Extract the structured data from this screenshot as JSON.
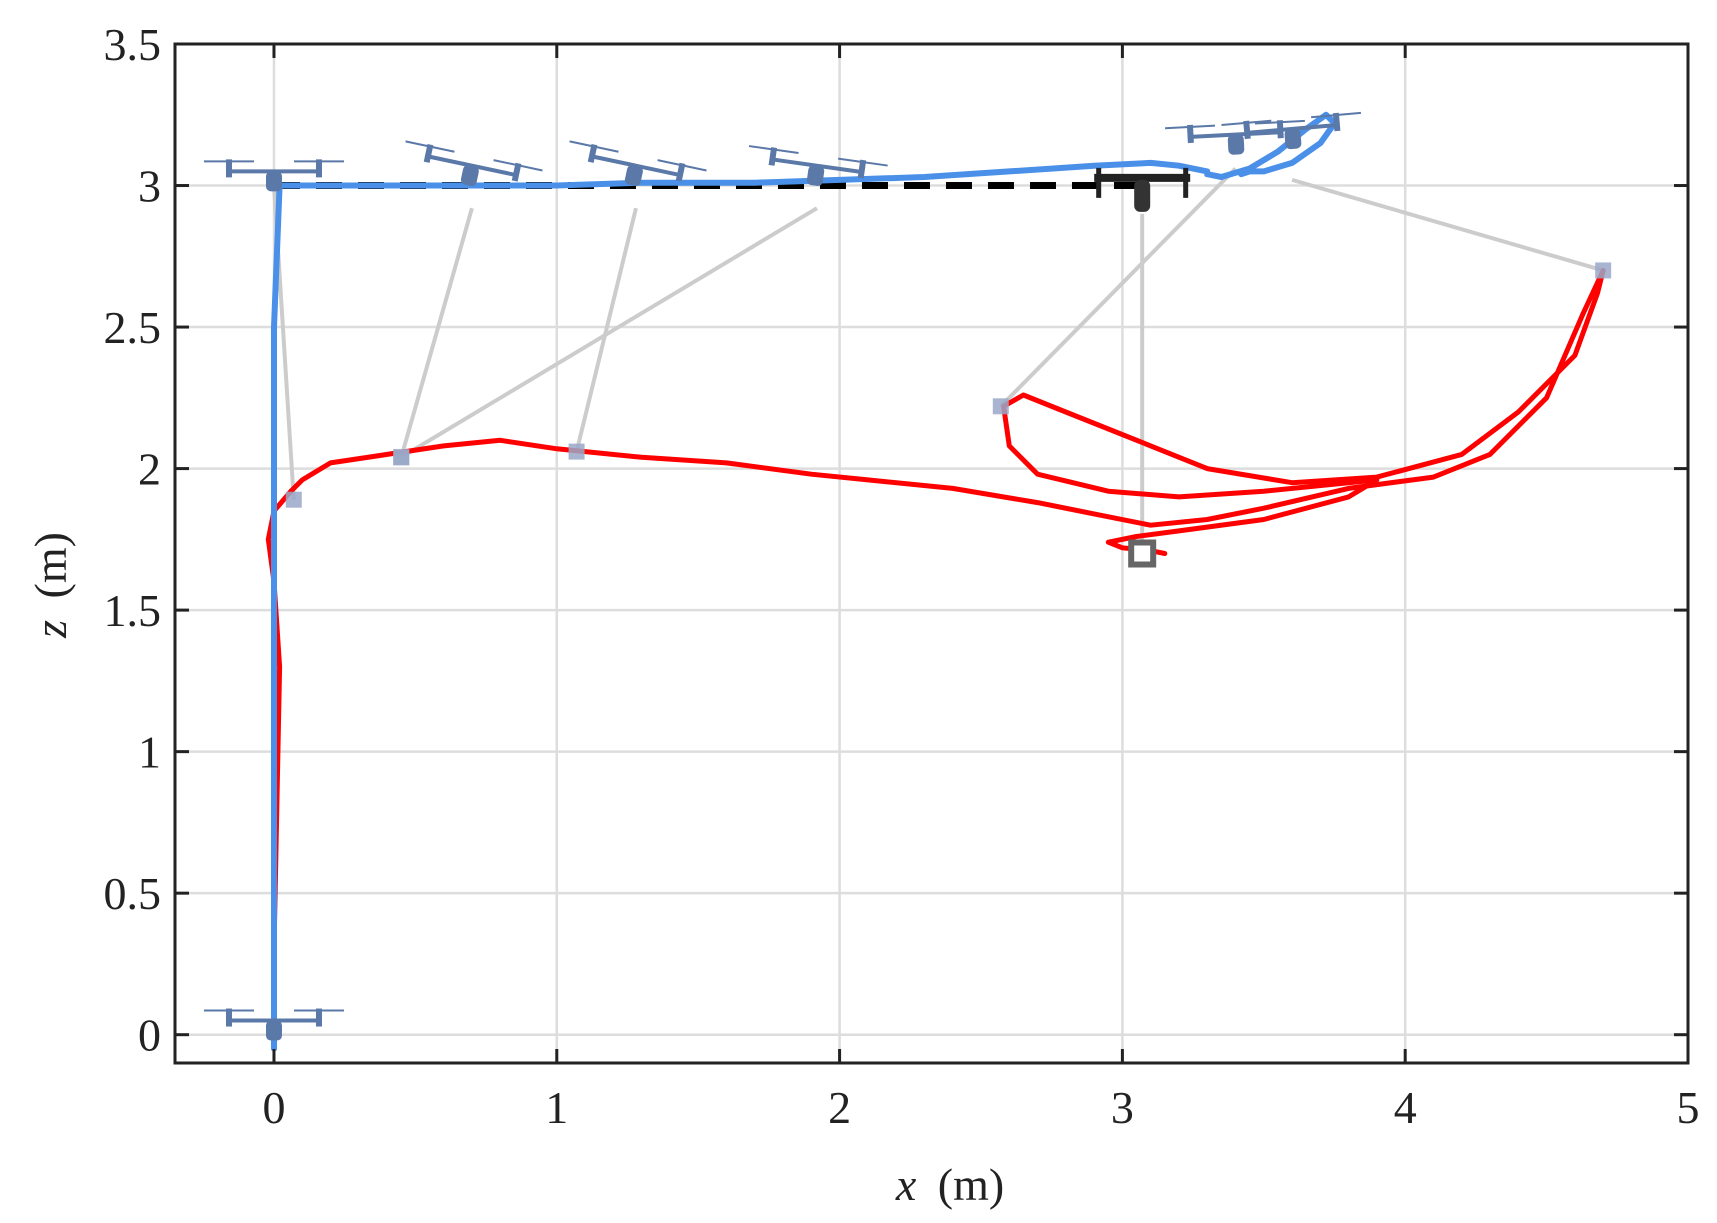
{
  "chart_data": {
    "type": "line",
    "xlabel": "x (m)",
    "ylabel": "z (m)",
    "xlabel_var": "x",
    "xlabel_unit": "(m)",
    "ylabel_var": "z",
    "ylabel_unit": "(m)",
    "xlim": [
      -0.35,
      5.0
    ],
    "ylim": [
      -0.1,
      3.5
    ],
    "xticks": [
      0,
      1,
      2,
      3,
      4,
      5
    ],
    "xtick_labels": [
      "0",
      "1",
      "2",
      "3",
      "4",
      "5"
    ],
    "yticks": [
      0,
      0.5,
      1,
      1.5,
      2,
      2.5,
      3,
      3.5
    ],
    "ytick_labels": [
      "0",
      "0.5",
      "1",
      "1.5",
      "2",
      "2.5",
      "3",
      "3.5"
    ],
    "grid": true,
    "colors": {
      "drone": "#4a90e8",
      "payload": "#ff0000",
      "reference": "#000000",
      "cable": "#cccccc",
      "grid": "#dddddd",
      "axes": "#222222",
      "payload_marker": "#9aa8c8",
      "final_payload_marker": "#666666",
      "drone_icon": "#5a78a8"
    },
    "series": [
      {
        "role": "reference",
        "style": "dashed",
        "x": [
          0,
          3.05
        ],
        "y": [
          3.0,
          3.0
        ]
      },
      {
        "role": "drone",
        "style": "solid",
        "x": [
          0.0,
          0.0,
          0.0,
          0.0,
          0.0,
          0.0,
          0.02,
          0.3,
          0.7,
          1.0,
          1.3,
          1.7,
          2.0,
          2.3,
          2.6,
          2.9,
          3.1,
          3.2,
          3.3,
          3.3,
          3.35,
          3.45,
          3.55,
          3.65,
          3.72,
          3.75,
          3.7,
          3.6,
          3.5,
          3.45,
          3.42
        ],
        "y": [
          -0.05,
          0.5,
          1.0,
          1.5,
          2.0,
          2.5,
          3.0,
          3.0,
          3.0,
          3.0,
          3.01,
          3.01,
          3.02,
          3.03,
          3.05,
          3.07,
          3.08,
          3.07,
          3.05,
          3.04,
          3.03,
          3.06,
          3.12,
          3.2,
          3.25,
          3.22,
          3.15,
          3.08,
          3.05,
          3.05,
          3.04
        ]
      },
      {
        "role": "payload",
        "style": "solid",
        "x": [
          0.0,
          0.01,
          0.02,
          0.0,
          -0.02,
          0.0,
          0.06,
          0.1,
          0.2,
          0.4,
          0.6,
          0.8,
          1.0,
          1.3,
          1.6,
          1.9,
          2.1,
          2.4,
          2.7,
          2.9,
          3.1,
          3.3,
          3.5,
          3.8,
          4.1,
          4.3,
          4.5,
          4.63,
          4.7,
          4.68,
          4.6,
          4.4,
          4.2,
          3.9,
          3.6,
          3.3,
          3.1,
          2.8,
          2.65,
          2.58,
          2.6,
          2.7,
          2.95,
          3.2,
          3.5,
          3.9,
          3.8,
          3.5,
          3.2,
          3.05,
          2.95,
          3.0,
          3.1,
          3.15
        ],
        "y": [
          0.3,
          0.8,
          1.3,
          1.6,
          1.75,
          1.85,
          1.92,
          1.96,
          2.02,
          2.05,
          2.08,
          2.1,
          2.07,
          2.04,
          2.02,
          1.98,
          1.96,
          1.93,
          1.88,
          1.84,
          1.8,
          1.82,
          1.86,
          1.93,
          1.97,
          2.05,
          2.25,
          2.55,
          2.7,
          2.62,
          2.4,
          2.2,
          2.05,
          1.97,
          1.95,
          2.0,
          2.08,
          2.2,
          2.26,
          2.22,
          2.08,
          1.98,
          1.92,
          1.9,
          1.92,
          1.96,
          1.9,
          1.82,
          1.78,
          1.76,
          1.74,
          1.72,
          1.71,
          1.7
        ]
      }
    ],
    "cable_snapshots": [
      {
        "drone": [
          0.0,
          3.0
        ],
        "payload": [
          0.07,
          1.89
        ]
      },
      {
        "drone": [
          0.7,
          2.92
        ],
        "payload": [
          0.45,
          2.04
        ]
      },
      {
        "drone": [
          1.28,
          2.92
        ],
        "payload": [
          1.07,
          2.06
        ]
      },
      {
        "drone": [
          1.92,
          2.92
        ],
        "payload": [
          0.45,
          2.04
        ]
      },
      {
        "drone": [
          3.4,
          3.06
        ],
        "payload": [
          2.57,
          2.22
        ]
      },
      {
        "drone": [
          3.6,
          3.02
        ],
        "payload": [
          4.7,
          2.7
        ]
      },
      {
        "drone": [
          3.07,
          2.9
        ],
        "payload": [
          3.07,
          1.7
        ]
      }
    ],
    "drone_icons": [
      {
        "x": 0.0,
        "z": 3.05,
        "tilt": 0
      },
      {
        "x": 0.7,
        "z": 3.07,
        "tilt": 12
      },
      {
        "x": 1.28,
        "z": 3.07,
        "tilt": 12
      },
      {
        "x": 1.92,
        "z": 3.07,
        "tilt": 8
      },
      {
        "x": 3.4,
        "z": 3.18,
        "tilt": -3
      },
      {
        "x": 3.6,
        "z": 3.2,
        "tilt": -5
      },
      {
        "x": 0.0,
        "z": 0.05,
        "tilt": 0
      }
    ],
    "final_drone": {
      "x": 3.07,
      "z": 3.02
    },
    "final_payload": {
      "x": 3.07,
      "z": 1.7
    }
  }
}
